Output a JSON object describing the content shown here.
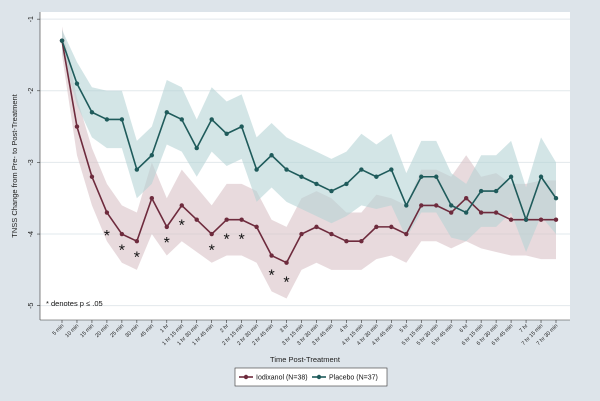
{
  "chart_data": {
    "type": "line",
    "xlabel": "Time Post-Treatment",
    "ylabel": "TNSS Change from Pre- to Post-Treatment",
    "ylim": [
      -5.2,
      -0.9
    ],
    "yticks": [
      -1,
      -2,
      -3,
      -4,
      -5
    ],
    "grid": true,
    "legend_position": "bottom",
    "categories": [
      "5 min",
      "10 min",
      "15 min",
      "20 min",
      "25 min",
      "30 min",
      "45 min",
      "1 hr",
      "1 hr 15 min",
      "1 hr 30 min",
      "1 hr 45 min",
      "2 hr",
      "2 hr 15 min",
      "2 hr 30 min",
      "2 hr 45 min",
      "3 hr",
      "3 hr 15 min",
      "3 hr 30 min",
      "3 hr 45 min",
      "4 hr",
      "4 hr 15 min",
      "4 hr 30 min",
      "4 hr 45 min",
      "5 hr",
      "5 hr 15 min",
      "5 hr 30 min",
      "5 hr 45 min",
      "6 hr",
      "6 hr 15 min",
      "6 hr 30 min",
      "6 hr 45 min",
      "7 hr",
      "7 hr 15 min",
      "7 hr 30 min"
    ],
    "series": [
      {
        "name": "Iodixanol (N=38)",
        "color": "#6e2b3d",
        "band_color": "#d8c2c6",
        "values": [
          -1.3,
          -2.5,
          -3.2,
          -3.7,
          -4.0,
          -4.1,
          -3.5,
          -3.9,
          -3.6,
          -3.8,
          -4.0,
          -3.8,
          -3.8,
          -3.9,
          -4.3,
          -4.4,
          -4.0,
          -3.9,
          -4.0,
          -4.1,
          -4.1,
          -3.9,
          -3.9,
          -4.0,
          -3.6,
          -3.6,
          -3.7,
          -3.5,
          -3.7,
          -3.7,
          -3.8,
          -3.8,
          -3.8,
          -3.8
        ],
        "ci_low": [
          -1.5,
          -2.9,
          -3.6,
          -4.1,
          -4.4,
          -4.5,
          -4.0,
          -4.3,
          -4.1,
          -4.25,
          -4.4,
          -4.3,
          -4.3,
          -4.4,
          -4.8,
          -4.9,
          -4.5,
          -4.4,
          -4.5,
          -4.5,
          -4.5,
          -4.35,
          -4.3,
          -4.4,
          -4.1,
          -4.1,
          -4.2,
          -4.1,
          -4.2,
          -4.25,
          -4.3,
          -4.3,
          -4.35,
          -4.35
        ],
        "ci_high": [
          -1.1,
          -2.1,
          -2.8,
          -3.3,
          -3.6,
          -3.7,
          -3.0,
          -3.5,
          -3.1,
          -3.35,
          -3.6,
          -3.3,
          -3.3,
          -3.4,
          -3.8,
          -3.9,
          -3.5,
          -3.4,
          -3.5,
          -3.7,
          -3.7,
          -3.45,
          -3.5,
          -3.6,
          -3.1,
          -3.1,
          -3.2,
          -2.9,
          -3.2,
          -3.15,
          -3.3,
          -3.3,
          -3.25,
          -3.25
        ]
      },
      {
        "name": "Placebo (N=37)",
        "color": "#1f5b5b",
        "band_color": "#b5d3d5",
        "values": [
          -1.3,
          -1.9,
          -2.3,
          -2.4,
          -2.4,
          -3.1,
          -2.9,
          -2.3,
          -2.4,
          -2.8,
          -2.4,
          -2.6,
          -2.5,
          -3.1,
          -2.9,
          -3.1,
          -3.2,
          -3.3,
          -3.4,
          -3.3,
          -3.1,
          -3.2,
          -3.1,
          -3.6,
          -3.2,
          -3.2,
          -3.6,
          -3.7,
          -3.4,
          -3.4,
          -3.2,
          -3.8,
          -3.2,
          -3.5
        ],
        "ci_low": [
          -1.45,
          -2.2,
          -2.65,
          -2.8,
          -2.8,
          -3.5,
          -3.3,
          -2.75,
          -2.85,
          -3.2,
          -2.85,
          -3.05,
          -2.95,
          -3.55,
          -3.35,
          -3.55,
          -3.65,
          -3.75,
          -3.85,
          -3.75,
          -3.6,
          -3.65,
          -3.6,
          -4.05,
          -3.7,
          -3.7,
          -4.05,
          -4.1,
          -3.9,
          -3.9,
          -3.7,
          -4.25,
          -3.75,
          -4.0
        ],
        "ci_high": [
          -1.15,
          -1.6,
          -1.95,
          -2.0,
          -2.0,
          -2.7,
          -2.5,
          -1.85,
          -1.95,
          -2.4,
          -1.95,
          -2.15,
          -2.05,
          -2.65,
          -2.45,
          -2.65,
          -2.75,
          -2.85,
          -2.95,
          -2.85,
          -2.6,
          -2.75,
          -2.6,
          -3.15,
          -2.7,
          -2.7,
          -3.15,
          -3.3,
          -2.9,
          -2.9,
          -2.7,
          -3.35,
          -2.65,
          -3.0
        ]
      }
    ],
    "significance_marks": [
      {
        "category": "20 min",
        "value": -4.0
      },
      {
        "category": "25 min",
        "value": -4.2
      },
      {
        "category": "30 min",
        "value": -4.3
      },
      {
        "category": "1 hr",
        "value": -4.1
      },
      {
        "category": "1 hr 15 min",
        "value": -3.85
      },
      {
        "category": "1 hr 45 min",
        "value": -4.2
      },
      {
        "category": "2 hr",
        "value": -4.05
      },
      {
        "category": "2 hr 15 min",
        "value": -4.05
      },
      {
        "category": "2 hr 45 min",
        "value": -4.55
      },
      {
        "category": "3 hr",
        "value": -4.65
      }
    ],
    "significance_symbol": "*",
    "note": "* denotes p ≤ .05"
  }
}
